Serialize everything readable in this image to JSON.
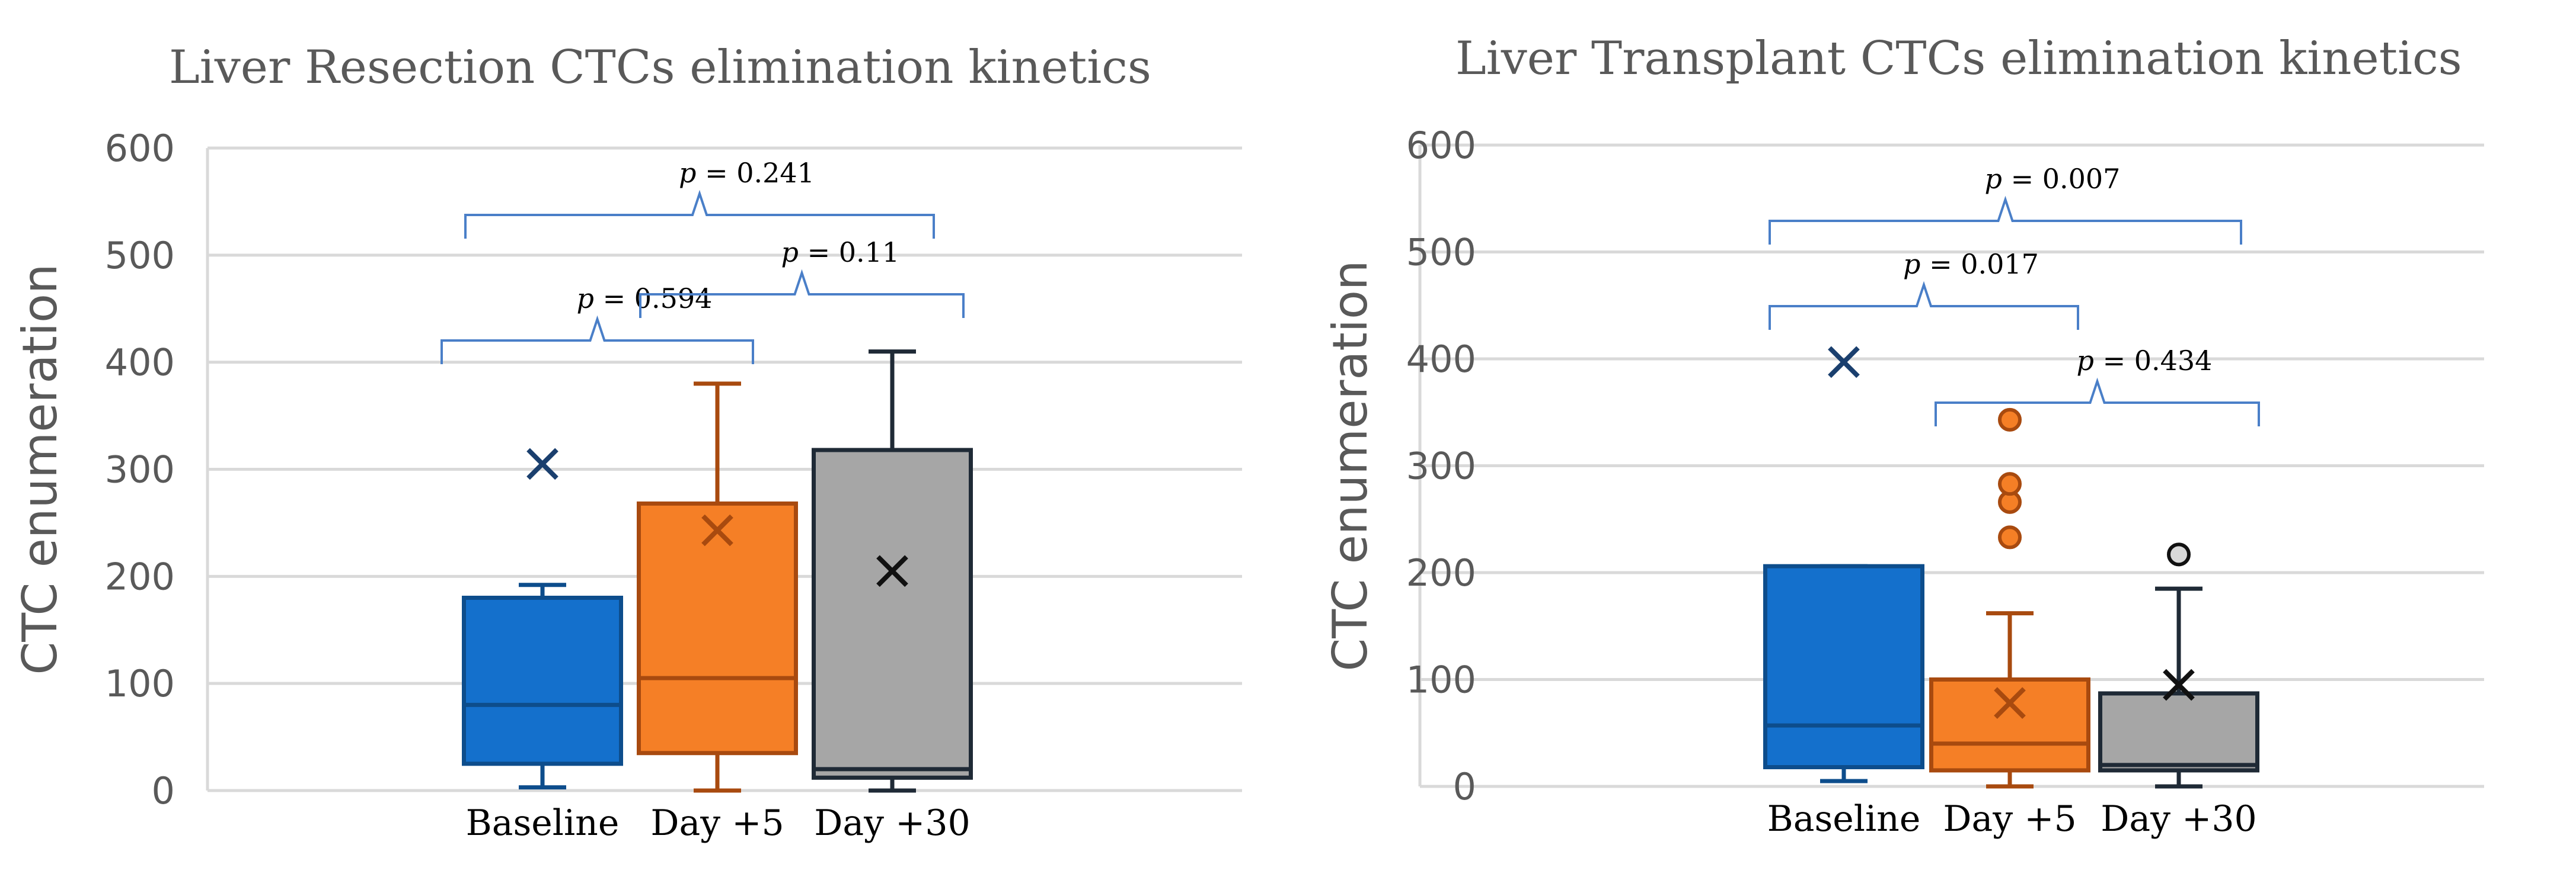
{
  "chart_data": [
    {
      "type": "box",
      "title": "Liver Resection CTCs elimination kinetics",
      "ylabel": "CTC enumeration",
      "xlabel": "",
      "ylim": [
        0,
        600
      ],
      "yticks": [
        0,
        100,
        200,
        300,
        400,
        500,
        600
      ],
      "grid": true,
      "categories": [
        "Baseline",
        "Day +5",
        "Day +30"
      ],
      "boxes": [
        {
          "category": "Baseline",
          "min": 3,
          "q1": 25,
          "median": 80,
          "q3": 180,
          "max": 192,
          "mean": 305,
          "outliers": [],
          "color": "#1470CC",
          "edge": "#0D4D8C"
        },
        {
          "category": "Day +5",
          "min": 0,
          "q1": 35,
          "median": 105,
          "q3": 268,
          "max": 380,
          "mean": 243,
          "outliers": [],
          "color": "#F57F26",
          "edge": "#A84A0F"
        },
        {
          "category": "Day +30",
          "min": 0,
          "q1": 12,
          "median": 20,
          "q3": 318,
          "max": 410,
          "mean": 205,
          "outliers": [],
          "color": "#A6A6A6",
          "edge": "#1F2A36"
        }
      ],
      "comparisons": [
        {
          "prefix": "p",
          "text": " = 0.594",
          "from": 0,
          "to": 1,
          "level": 1
        },
        {
          "prefix": "p",
          "text": " = 0.11",
          "from": 1,
          "to": 2,
          "level": 2
        },
        {
          "prefix": "p",
          "text": " = 0.241",
          "from": 0,
          "to": 2,
          "level": 3
        }
      ]
    },
    {
      "type": "box",
      "title": "Liver Transplant CTCs elimination kinetics",
      "ylabel": "CTC enumeration",
      "xlabel": "",
      "ylim": [
        0,
        600
      ],
      "yticks": [
        0,
        100,
        200,
        300,
        400,
        500,
        600
      ],
      "grid": true,
      "categories": [
        "Baseline",
        "Day +5",
        "Day +30"
      ],
      "boxes": [
        {
          "category": "Baseline",
          "min": 5,
          "q1": 18,
          "median": 57,
          "q3": 206,
          "max": 206,
          "mean": 397,
          "outliers": [],
          "color": "#1470CC",
          "edge": "#0D4D8C"
        },
        {
          "category": "Day +5",
          "min": 0,
          "q1": 15,
          "median": 40,
          "q3": 100,
          "max": 162,
          "mean": 78,
          "outliers": [
            233,
            266,
            283,
            343
          ],
          "color": "#F57F26",
          "edge": "#A84A0F"
        },
        {
          "category": "Day +30",
          "min": 0,
          "q1": 15,
          "median": 20,
          "q3": 87,
          "max": 185,
          "mean": 95,
          "outliers": [
            217
          ],
          "color": "#A6A6A6",
          "edge": "#1F2A36"
        }
      ],
      "comparisons": [
        {
          "prefix": "p",
          "text": " = 0.434",
          "from": 1,
          "to": 2,
          "level": 1
        },
        {
          "prefix": "p",
          "text": " = 0.017",
          "from": 0,
          "to": 1,
          "level": 2
        },
        {
          "prefix": "p",
          "text": " = 0.007",
          "from": 0,
          "to": 2,
          "level": 3
        }
      ]
    }
  ]
}
